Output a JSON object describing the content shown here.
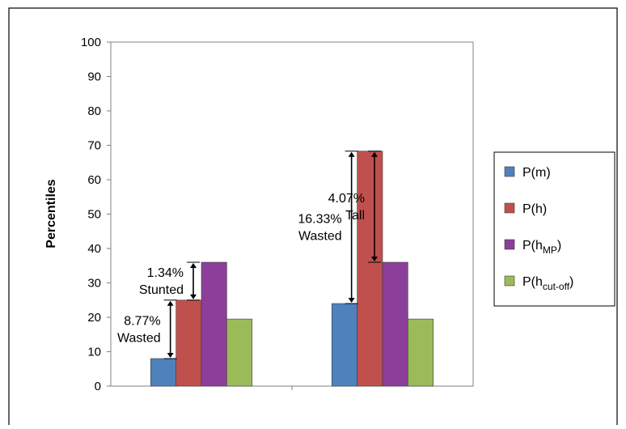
{
  "chart_data": {
    "type": "bar",
    "title": "",
    "xlabel": "",
    "ylabel": "Percentiles",
    "ylim": [
      0,
      100
    ],
    "yticks": [
      0,
      10,
      20,
      30,
      40,
      50,
      60,
      70,
      80,
      90,
      100
    ],
    "grid": false,
    "legend_position": "right",
    "categories": [
      "",
      ""
    ],
    "series": [
      {
        "name": "P(m)",
        "label_main": "P(m)",
        "label_sub": "",
        "color": "#4f81bd",
        "values": [
          8,
          24
        ]
      },
      {
        "name": "P(h)",
        "label_main": "P(h)",
        "label_sub": "",
        "color": "#c0504d",
        "values": [
          25,
          68.3
        ]
      },
      {
        "name": "P(hMP)",
        "label_main": "P(h",
        "label_sub": "MP",
        "color": "#8b3f9a",
        "values": [
          36,
          36
        ]
      },
      {
        "name": "P(hcut-off)",
        "label_main": "P(h",
        "label_sub": "cut-off",
        "color": "#9bbb59",
        "values": [
          19.5,
          19.5
        ]
      }
    ],
    "annotations": [
      {
        "category": 0,
        "series_from": 0,
        "series_to": 1,
        "from": 8,
        "to": 25,
        "lines": [
          "8.77%",
          "Wasted"
        ]
      },
      {
        "category": 0,
        "series_from": 1,
        "series_to": 2,
        "from": 25,
        "to": 36,
        "lines": [
          "1.34%",
          "Stunted"
        ]
      },
      {
        "category": 1,
        "series_from": 0,
        "series_to": 1,
        "from": 24,
        "to": 68.3,
        "lines": [
          "16.33%",
          "Wasted"
        ]
      },
      {
        "category": 1,
        "series_from": 1,
        "series_to": 2,
        "from": 36,
        "to": 68.3,
        "lines": [
          "4.07%",
          "Tall"
        ]
      }
    ]
  }
}
